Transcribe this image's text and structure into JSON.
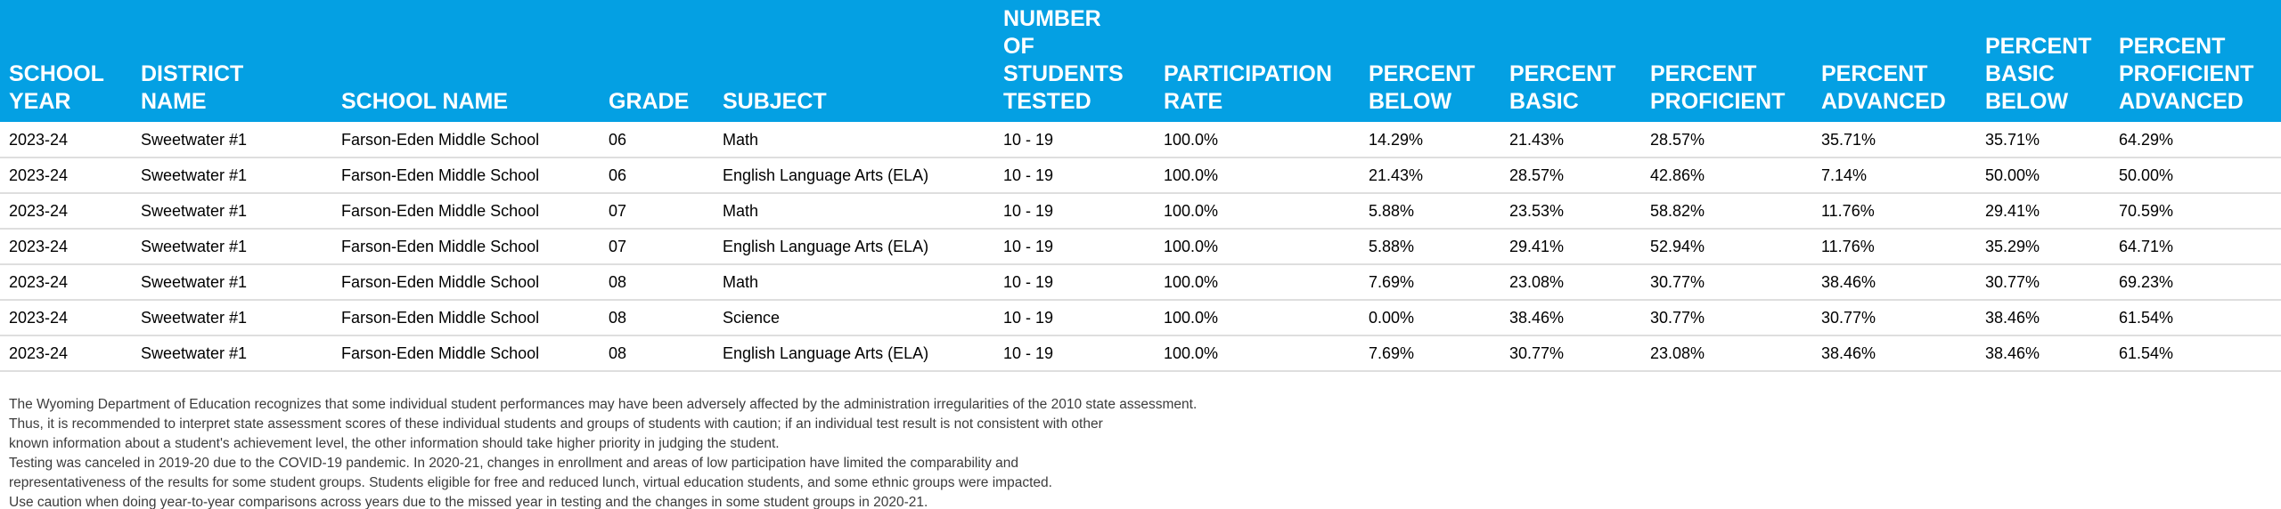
{
  "colors": {
    "header_bg": "#04A0E3",
    "header_text": "#FFFFFF",
    "row_divider": "#DEDEDE",
    "body_text": "#000000",
    "footer_text": "#3C3C3C"
  },
  "table": {
    "columns": [
      {
        "key": "school_year",
        "label": "SCHOOL YEAR",
        "label_lines": [
          "SCHOOL",
          "YEAR"
        ]
      },
      {
        "key": "district_name",
        "label": "DISTRICT NAME",
        "label_lines": [
          "DISTRICT",
          "NAME"
        ]
      },
      {
        "key": "school_name",
        "label": "SCHOOL NAME",
        "label_lines": [
          "SCHOOL NAME"
        ]
      },
      {
        "key": "grade",
        "label": "GRADE",
        "label_lines": [
          "GRADE"
        ]
      },
      {
        "key": "subject",
        "label": "SUBJECT",
        "label_lines": [
          "SUBJECT"
        ]
      },
      {
        "key": "number_of_students_tested",
        "label": "NUMBER OF STUDENTS TESTED",
        "label_lines": [
          "NUMBER",
          "OF",
          "STUDENTS",
          "TESTED"
        ]
      },
      {
        "key": "participation_rate",
        "label": "PARTICIPATION RATE",
        "label_lines": [
          "PARTICIPATION",
          "RATE"
        ]
      },
      {
        "key": "percent_below",
        "label": "PERCENT BELOW",
        "label_lines": [
          "PERCENT",
          "BELOW"
        ]
      },
      {
        "key": "percent_basic",
        "label": "PERCENT BASIC",
        "label_lines": [
          "PERCENT",
          "BASIC"
        ]
      },
      {
        "key": "percent_proficient",
        "label": "PERCENT PROFICIENT",
        "label_lines": [
          "PERCENT",
          "PROFICIENT"
        ]
      },
      {
        "key": "percent_advanced",
        "label": "PERCENT ADVANCED",
        "label_lines": [
          "PERCENT",
          "ADVANCED"
        ]
      },
      {
        "key": "percent_basic_below",
        "label": "PERCENT BASIC BELOW",
        "label_lines": [
          "PERCENT",
          "BASIC",
          "BELOW"
        ]
      },
      {
        "key": "percent_proficient_advanced",
        "label": "PERCENT PROFICIENT ADVANCED",
        "label_lines": [
          "PERCENT",
          "PROFICIENT",
          "ADVANCED"
        ]
      }
    ],
    "rows": [
      {
        "school_year": "2023-24",
        "district_name": "Sweetwater #1",
        "school_name": "Farson-Eden Middle School",
        "grade": "06",
        "subject": "Math",
        "number_of_students_tested": "10 - 19",
        "participation_rate": "100.0%",
        "percent_below": "14.29%",
        "percent_basic": "21.43%",
        "percent_proficient": "28.57%",
        "percent_advanced": "35.71%",
        "percent_basic_below": "35.71%",
        "percent_proficient_advanced": "64.29%"
      },
      {
        "school_year": "2023-24",
        "district_name": "Sweetwater #1",
        "school_name": "Farson-Eden Middle School",
        "grade": "06",
        "subject": "English Language Arts (ELA)",
        "number_of_students_tested": "10 - 19",
        "participation_rate": "100.0%",
        "percent_below": "21.43%",
        "percent_basic": "28.57%",
        "percent_proficient": "42.86%",
        "percent_advanced": "7.14%",
        "percent_basic_below": "50.00%",
        "percent_proficient_advanced": "50.00%"
      },
      {
        "school_year": "2023-24",
        "district_name": "Sweetwater #1",
        "school_name": "Farson-Eden Middle School",
        "grade": "07",
        "subject": "Math",
        "number_of_students_tested": "10 - 19",
        "participation_rate": "100.0%",
        "percent_below": "5.88%",
        "percent_basic": "23.53%",
        "percent_proficient": "58.82%",
        "percent_advanced": "11.76%",
        "percent_basic_below": "29.41%",
        "percent_proficient_advanced": "70.59%"
      },
      {
        "school_year": "2023-24",
        "district_name": "Sweetwater #1",
        "school_name": "Farson-Eden Middle School",
        "grade": "07",
        "subject": "English Language Arts (ELA)",
        "number_of_students_tested": "10 - 19",
        "participation_rate": "100.0%",
        "percent_below": "5.88%",
        "percent_basic": "29.41%",
        "percent_proficient": "52.94%",
        "percent_advanced": "11.76%",
        "percent_basic_below": "35.29%",
        "percent_proficient_advanced": "64.71%"
      },
      {
        "school_year": "2023-24",
        "district_name": "Sweetwater #1",
        "school_name": "Farson-Eden Middle School",
        "grade": "08",
        "subject": "Math",
        "number_of_students_tested": "10 - 19",
        "participation_rate": "100.0%",
        "percent_below": "7.69%",
        "percent_basic": "23.08%",
        "percent_proficient": "30.77%",
        "percent_advanced": "38.46%",
        "percent_basic_below": "30.77%",
        "percent_proficient_advanced": "69.23%"
      },
      {
        "school_year": "2023-24",
        "district_name": "Sweetwater #1",
        "school_name": "Farson-Eden Middle School",
        "grade": "08",
        "subject": "Science",
        "number_of_students_tested": "10 - 19",
        "participation_rate": "100.0%",
        "percent_below": "0.00%",
        "percent_basic": "38.46%",
        "percent_proficient": "30.77%",
        "percent_advanced": "30.77%",
        "percent_basic_below": "38.46%",
        "percent_proficient_advanced": "61.54%"
      },
      {
        "school_year": "2023-24",
        "district_name": "Sweetwater #1",
        "school_name": "Farson-Eden Middle School",
        "grade": "08",
        "subject": "English Language Arts (ELA)",
        "number_of_students_tested": "10 - 19",
        "participation_rate": "100.0%",
        "percent_below": "7.69%",
        "percent_basic": "30.77%",
        "percent_proficient": "23.08%",
        "percent_advanced": "38.46%",
        "percent_basic_below": "38.46%",
        "percent_proficient_advanced": "61.54%"
      }
    ]
  },
  "footer": {
    "lines": [
      "The Wyoming Department of Education recognizes that some individual student performances may have been adversely affected by the administration irregularities of the 2010 state assessment.",
      "Thus, it is recommended to interpret state assessment scores of these individual students and groups of students with caution; if an individual test result is not consistent with other",
      "known information about a student's achievement level, the other information should take higher priority in judging the student.",
      "Testing was canceled in 2019-20 due to the COVID-19 pandemic. In 2020-21, changes in enrollment and areas of low participation have limited the comparability and",
      "representativeness of the results for some student groups. Students eligible for free and reduced lunch, virtual education students, and some ethnic groups were impacted.",
      "Use caution when doing year-to-year comparisons across years due to the missed year in testing and the changes in some student groups in 2020-21."
    ]
  }
}
